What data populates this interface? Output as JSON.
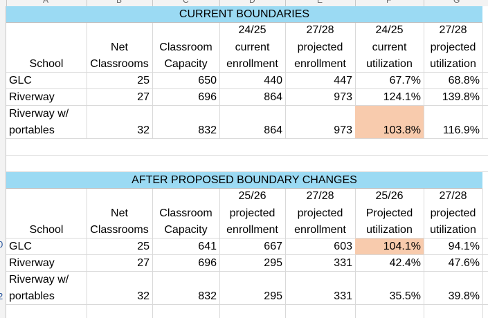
{
  "colors": {
    "banner_bg": "#9bdaf3",
    "highlight_bg": "#f8cbad"
  },
  "grid": {
    "column_letters_partial": [
      "A",
      "B",
      "C",
      "D",
      "E",
      "F",
      "G"
    ],
    "row_numbers_partial": [
      "0",
      "2"
    ]
  },
  "current": {
    "title": "CURRENT BOUNDARIES",
    "headers": {
      "school": "School",
      "net_classrooms": [
        "Net",
        "Classrooms"
      ],
      "classroom_capacity": [
        "Classroom",
        "Capacity"
      ],
      "current_enrollment": [
        "24/25",
        "current",
        "enrollment"
      ],
      "projected_enrollment": [
        "27/28",
        "projected",
        "enrollment"
      ],
      "current_utilization": [
        "24/25",
        "current",
        "utilization"
      ],
      "projected_utilization": [
        "27/28",
        "projected",
        "utilization"
      ]
    },
    "rows": [
      {
        "school": [
          "GLC"
        ],
        "net": "25",
        "capacity": "650",
        "enroll_a": "440",
        "enroll_b": "447",
        "util_a": "67.7%",
        "util_b": "68.8%"
      },
      {
        "school": [
          "Riverway"
        ],
        "net": "27",
        "capacity": "696",
        "enroll_a": "864",
        "enroll_b": "973",
        "util_a": "124.1%",
        "util_b": "139.8%"
      },
      {
        "school": [
          "Riverway w/",
          "portables"
        ],
        "net": "32",
        "capacity": "832",
        "enroll_a": "864",
        "enroll_b": "973",
        "util_a": "103.8%",
        "util_b": "116.9%"
      }
    ]
  },
  "proposed": {
    "title": "AFTER PROPOSED BOUNDARY CHANGES",
    "headers": {
      "school": "School",
      "net_classrooms": [
        "Net",
        "Classrooms"
      ],
      "classroom_capacity": [
        "Classroom",
        "Capacity"
      ],
      "enrollment_a": [
        "25/26",
        "projected",
        "enrollment"
      ],
      "enrollment_b": [
        "27/28",
        "projected",
        "enrollment"
      ],
      "utilization_a": [
        "25/26",
        "Projected",
        "utilization"
      ],
      "utilization_b": [
        "27/28",
        "projected",
        "utilization"
      ]
    },
    "rows": [
      {
        "school": [
          "GLC"
        ],
        "net": "25",
        "capacity": "641",
        "enroll_a": "667",
        "enroll_b": "603",
        "util_a": "104.1%",
        "util_b": "94.1%"
      },
      {
        "school": [
          "Riverway"
        ],
        "net": "27",
        "capacity": "696",
        "enroll_a": "295",
        "enroll_b": "331",
        "util_a": "42.4%",
        "util_b": "47.6%"
      },
      {
        "school": [
          "Riverway w/",
          "portables"
        ],
        "net": "32",
        "capacity": "832",
        "enroll_a": "295",
        "enroll_b": "331",
        "util_a": "35.5%",
        "util_b": "39.8%"
      }
    ]
  }
}
